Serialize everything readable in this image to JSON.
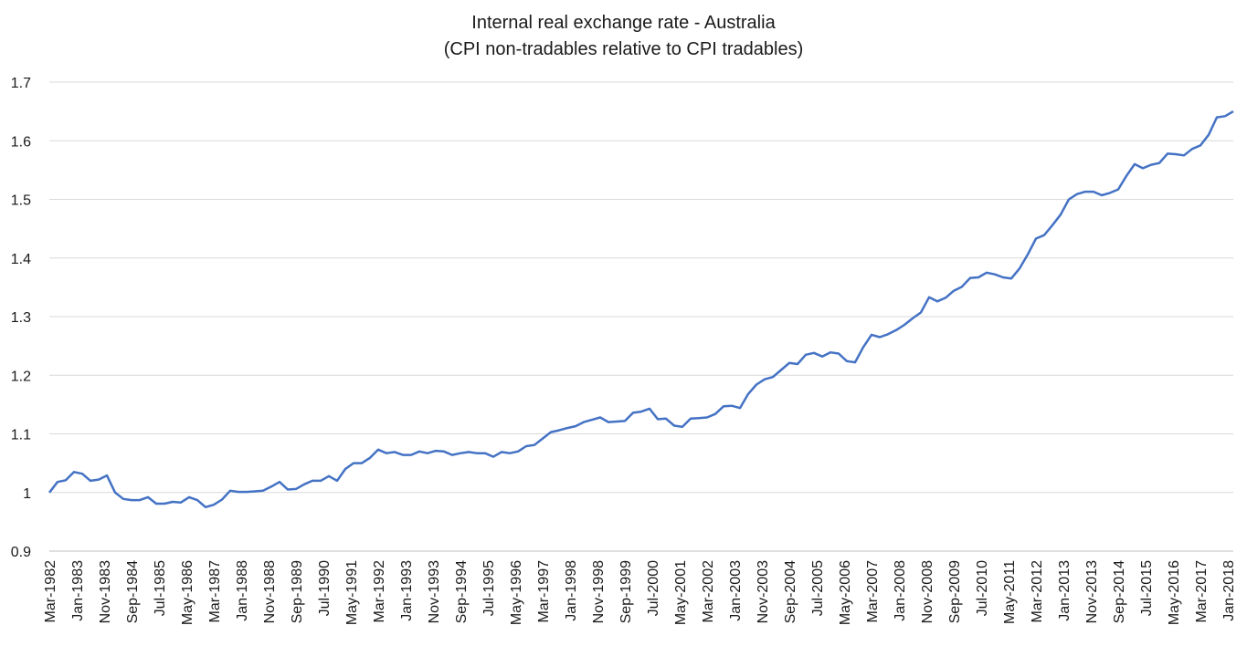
{
  "chart_data": {
    "type": "line",
    "title": "Internal real exchange rate - Australia",
    "subtitle": "(CPI non-tradables relative to CPI tradables)",
    "xlabel": "",
    "ylabel": "",
    "ylim": [
      0.9,
      1.7
    ],
    "yticks": [
      "0.9",
      "1",
      "1.1",
      "1.2",
      "1.3",
      "1.4",
      "1.5",
      "1.6",
      "1.7"
    ],
    "grid": true,
    "legend": "none",
    "series_color": "#4472C4",
    "x_tick_labels": [
      "Mar-1982",
      "Jan-1983",
      "Nov-1983",
      "Sep-1984",
      "Jul-1985",
      "May-1986",
      "Mar-1987",
      "Jan-1988",
      "Nov-1988",
      "Sep-1989",
      "Jul-1990",
      "May-1991",
      "Mar-1992",
      "Jan-1993",
      "Nov-1993",
      "Sep-1994",
      "Jul-1995",
      "May-1996",
      "Mar-1997",
      "Jan-1998",
      "Nov-1998",
      "Sep-1999",
      "Jul-2000",
      "May-2001",
      "Mar-2002",
      "Jan-2003",
      "Nov-2003",
      "Sep-2004",
      "Jul-2005",
      "May-2006",
      "Mar-2007",
      "Jan-2008",
      "Nov-2008",
      "Sep-2009",
      "Jul-2010",
      "May-2011",
      "Mar-2012",
      "Jan-2013",
      "Nov-2013",
      "Sep-2014",
      "Jul-2015",
      "May-2016",
      "Mar-2017",
      "Jan-2018"
    ],
    "series": [
      {
        "name": "Internal real exchange rate",
        "start": "Mar-1982",
        "frequency": "quarterly",
        "values": [
          1.0,
          1.018,
          1.021,
          1.035,
          1.032,
          1.02,
          1.022,
          1.029,
          1.0,
          0.989,
          0.987,
          0.987,
          0.992,
          0.981,
          0.981,
          0.984,
          0.983,
          0.992,
          0.987,
          0.975,
          0.979,
          0.988,
          1.003,
          1.001,
          1.001,
          1.002,
          1.003,
          1.01,
          1.018,
          1.005,
          1.006,
          1.014,
          1.02,
          1.02,
          1.028,
          1.02,
          1.04,
          1.05,
          1.05,
          1.059,
          1.073,
          1.067,
          1.069,
          1.064,
          1.064,
          1.07,
          1.067,
          1.071,
          1.07,
          1.064,
          1.067,
          1.069,
          1.067,
          1.067,
          1.061,
          1.069,
          1.067,
          1.07,
          1.079,
          1.081,
          1.092,
          1.103,
          1.106,
          1.11,
          1.113,
          1.12,
          1.124,
          1.128,
          1.12,
          1.121,
          1.122,
          1.136,
          1.138,
          1.143,
          1.125,
          1.126,
          1.114,
          1.112,
          1.126,
          1.127,
          1.128,
          1.134,
          1.147,
          1.148,
          1.144,
          1.168,
          1.184,
          1.193,
          1.197,
          1.209,
          1.221,
          1.219,
          1.235,
          1.238,
          1.232,
          1.239,
          1.237,
          1.224,
          1.222,
          1.248,
          1.269,
          1.265,
          1.27,
          1.277,
          1.286,
          1.297,
          1.307,
          1.333,
          1.326,
          1.332,
          1.344,
          1.351,
          1.366,
          1.367,
          1.375,
          1.372,
          1.367,
          1.365,
          1.382,
          1.406,
          1.433,
          1.439,
          1.456,
          1.474,
          1.5,
          1.509,
          1.513,
          1.513,
          1.507,
          1.511,
          1.517,
          1.54,
          1.56,
          1.553,
          1.559,
          1.562,
          1.578,
          1.577,
          1.575,
          1.586,
          1.592,
          1.61,
          1.64,
          1.642,
          1.65
        ]
      }
    ]
  }
}
